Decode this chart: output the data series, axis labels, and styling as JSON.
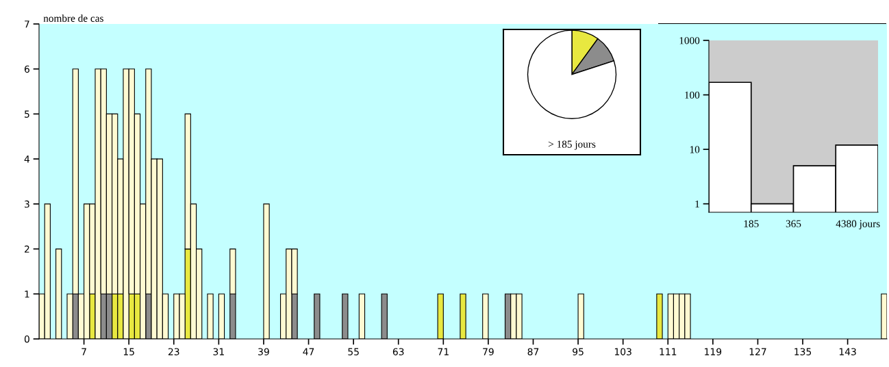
{
  "chart_data": [
    {
      "type": "bar",
      "ylabel": "nombre de cas",
      "stacked": true,
      "x": [
        -0.5,
        0.5,
        1.5,
        2.5,
        3.5,
        4.5,
        5.5,
        6.5,
        7.5,
        8.5,
        9.5,
        10.5,
        11.5,
        12.5,
        13.5,
        14.5,
        15.5,
        16.5,
        17.5,
        18.5,
        19.5,
        20.5,
        21.5,
        22.5,
        23.5,
        24.5,
        25.5,
        26.5,
        27.5,
        28.5,
        29.5,
        30.5,
        31.5,
        32.5,
        33.5,
        34.5,
        35.5,
        36.5,
        37.5,
        38.5,
        39.5,
        40.5,
        41.5,
        42.5,
        43.5,
        44.5,
        45.5,
        46.5,
        47.5,
        48.5,
        49.5,
        50.5,
        51.5,
        52.5,
        53.5,
        54.5,
        55.5,
        56.5,
        57.5,
        58.5,
        59.5,
        60.5,
        61.5,
        62.5,
        63.5,
        64.5,
        65.5,
        66.5,
        67.5,
        68.5,
        69.5,
        70.5,
        71.5,
        72.5,
        73.5,
        74.5,
        75.5,
        76.5,
        77.5,
        78.5,
        79.5,
        80.5,
        81.5,
        82.5,
        83.5,
        84.5,
        85.5,
        86.5,
        87.5,
        88.5,
        89.5,
        90.5,
        91.5,
        92.5,
        93.5,
        94.5,
        95.5,
        96.5,
        97.5,
        98.5,
        99.5,
        100.5,
        101.5,
        102.5,
        103.5,
        104.5,
        105.5,
        106.5,
        107.5,
        108.5,
        109.5,
        110.5,
        111.5,
        112.5,
        113.5,
        114.5,
        115.5,
        116.5,
        117.5,
        118.5,
        119.5,
        120.5,
        121.5,
        122.5,
        123.5,
        124.5,
        125.5,
        126.5,
        127.5,
        128.5,
        129.5,
        130.5,
        131.5,
        132.5,
        133.5,
        134.5,
        135.5,
        136.5,
        137.5,
        138.5,
        139.5,
        140.5,
        141.5,
        142.5,
        143.5,
        144.5,
        145.5,
        146.5,
        147.5,
        148.5,
        149.5
      ],
      "series": [
        {
          "color": "#e8e840",
          "values": [
            0,
            0,
            0,
            0,
            0,
            0,
            0,
            0,
            0,
            1,
            0,
            0,
            0,
            1,
            1,
            0,
            1,
            1,
            0,
            0,
            0,
            0,
            0,
            0,
            0,
            0,
            2,
            0,
            0,
            0,
            0,
            0,
            0,
            0,
            0,
            0,
            0,
            0,
            0,
            0,
            0,
            0,
            0,
            0,
            0,
            0,
            0,
            0,
            0,
            0,
            0,
            0,
            0,
            0,
            0,
            0,
            0,
            0,
            0,
            0,
            0,
            0,
            0,
            0,
            0,
            0,
            0,
            0,
            0,
            0,
            0,
            1,
            0,
            0,
            0,
            1,
            0,
            0,
            0,
            0,
            0,
            0,
            0,
            0,
            0,
            0,
            0,
            0,
            0,
            0,
            0,
            0,
            0,
            0,
            0,
            0,
            0,
            0,
            0,
            0,
            0,
            0,
            0,
            0,
            0,
            0,
            0,
            0,
            0,
            0,
            1,
            0,
            0,
            0,
            0,
            0,
            0,
            0,
            0,
            0,
            0,
            0,
            0,
            0,
            0,
            0,
            0,
            0,
            0,
            0,
            0,
            0,
            0,
            0,
            0,
            0,
            0,
            0,
            0,
            0,
            0,
            0,
            0,
            0,
            0,
            0,
            0,
            0,
            0,
            0,
            0
          ]
        },
        {
          "color": "#8c8c8c",
          "values": [
            0,
            0,
            0,
            0,
            0,
            0,
            1,
            0,
            0,
            0,
            0,
            1,
            1,
            0,
            0,
            0,
            0,
            0,
            0,
            1,
            0,
            0,
            0,
            0,
            0,
            0,
            0,
            0,
            0,
            0,
            0,
            0,
            0,
            0,
            1,
            0,
            0,
            0,
            0,
            0,
            0,
            0,
            0,
            0,
            0,
            1,
            0,
            0,
            0,
            1,
            0,
            0,
            0,
            0,
            1,
            0,
            0,
            0,
            0,
            0,
            0,
            1,
            0,
            0,
            0,
            0,
            0,
            0,
            0,
            0,
            0,
            0,
            0,
            0,
            0,
            0,
            0,
            0,
            0,
            0,
            0,
            0,
            0,
            1,
            0,
            0,
            0,
            0,
            0,
            0,
            0,
            0,
            0,
            0,
            0,
            0,
            0,
            0,
            0,
            0,
            0,
            0,
            0,
            0,
            0,
            0,
            0,
            0,
            0,
            0,
            0,
            0,
            0,
            0,
            0,
            0,
            0,
            0,
            0,
            0,
            0,
            0,
            0,
            0,
            0,
            0,
            0,
            0,
            0,
            0,
            0,
            0,
            0,
            0,
            0,
            0,
            0,
            0,
            0,
            0,
            0,
            0,
            0,
            0,
            0,
            0,
            0,
            0,
            0,
            0,
            0
          ]
        },
        {
          "color": "#fffad2",
          "values": [
            1,
            3,
            0,
            2,
            0,
            1,
            5,
            1,
            3,
            2,
            6,
            5,
            4,
            4,
            3,
            6,
            5,
            4,
            3,
            5,
            4,
            4,
            1,
            0,
            1,
            1,
            3,
            3,
            2,
            0,
            1,
            0,
            1,
            0,
            1,
            0,
            0,
            0,
            0,
            0,
            3,
            0,
            0,
            1,
            2,
            1,
            0,
            0,
            0,
            0,
            0,
            0,
            0,
            0,
            0,
            0,
            0,
            1,
            0,
            0,
            0,
            0,
            0,
            0,
            0,
            0,
            0,
            0,
            0,
            0,
            0,
            0,
            0,
            0,
            0,
            0,
            0,
            0,
            0,
            1,
            0,
            0,
            0,
            0,
            1,
            1,
            0,
            0,
            0,
            0,
            0,
            0,
            0,
            0,
            0,
            0,
            1,
            0,
            0,
            0,
            0,
            0,
            0,
            0,
            0,
            0,
            0,
            0,
            0,
            0,
            0,
            0,
            1,
            1,
            1,
            1,
            0,
            0,
            0,
            0,
            0,
            0,
            0,
            0,
            0,
            0,
            0,
            0,
            0,
            0,
            0,
            0,
            0,
            0,
            0,
            0,
            0,
            0,
            0,
            0,
            0,
            0,
            0,
            0,
            0,
            0,
            0,
            0,
            0,
            0,
            1
          ]
        }
      ],
      "xlim": [
        -1,
        150
      ],
      "xticks": [
        7,
        15,
        23,
        31,
        39,
        47,
        55,
        63,
        71,
        79,
        87,
        95,
        103,
        111,
        119,
        127,
        135,
        143
      ],
      "ylim": [
        0,
        7
      ],
      "yticks": [
        0,
        1,
        2,
        3,
        4,
        5,
        6,
        7
      ],
      "grid": false
    },
    {
      "type": "pie",
      "xlabel": "> 185 jours",
      "categories": [
        null,
        null,
        null
      ],
      "values": [
        10,
        10,
        80
      ],
      "colors": [
        "#e8e840",
        "#8c8c8c",
        "#ffffff"
      ]
    },
    {
      "type": "bar",
      "categories": [
        null,
        null,
        null,
        null
      ],
      "values": [
        170,
        1,
        5,
        12
      ],
      "color": "#ffffff",
      "log": true,
      "annotations": [
        "185",
        "365",
        "4380 jours"
      ],
      "ylim": [
        0.7,
        1000
      ],
      "yticks": [
        1,
        10,
        100,
        1000
      ],
      "grid": false
    }
  ]
}
